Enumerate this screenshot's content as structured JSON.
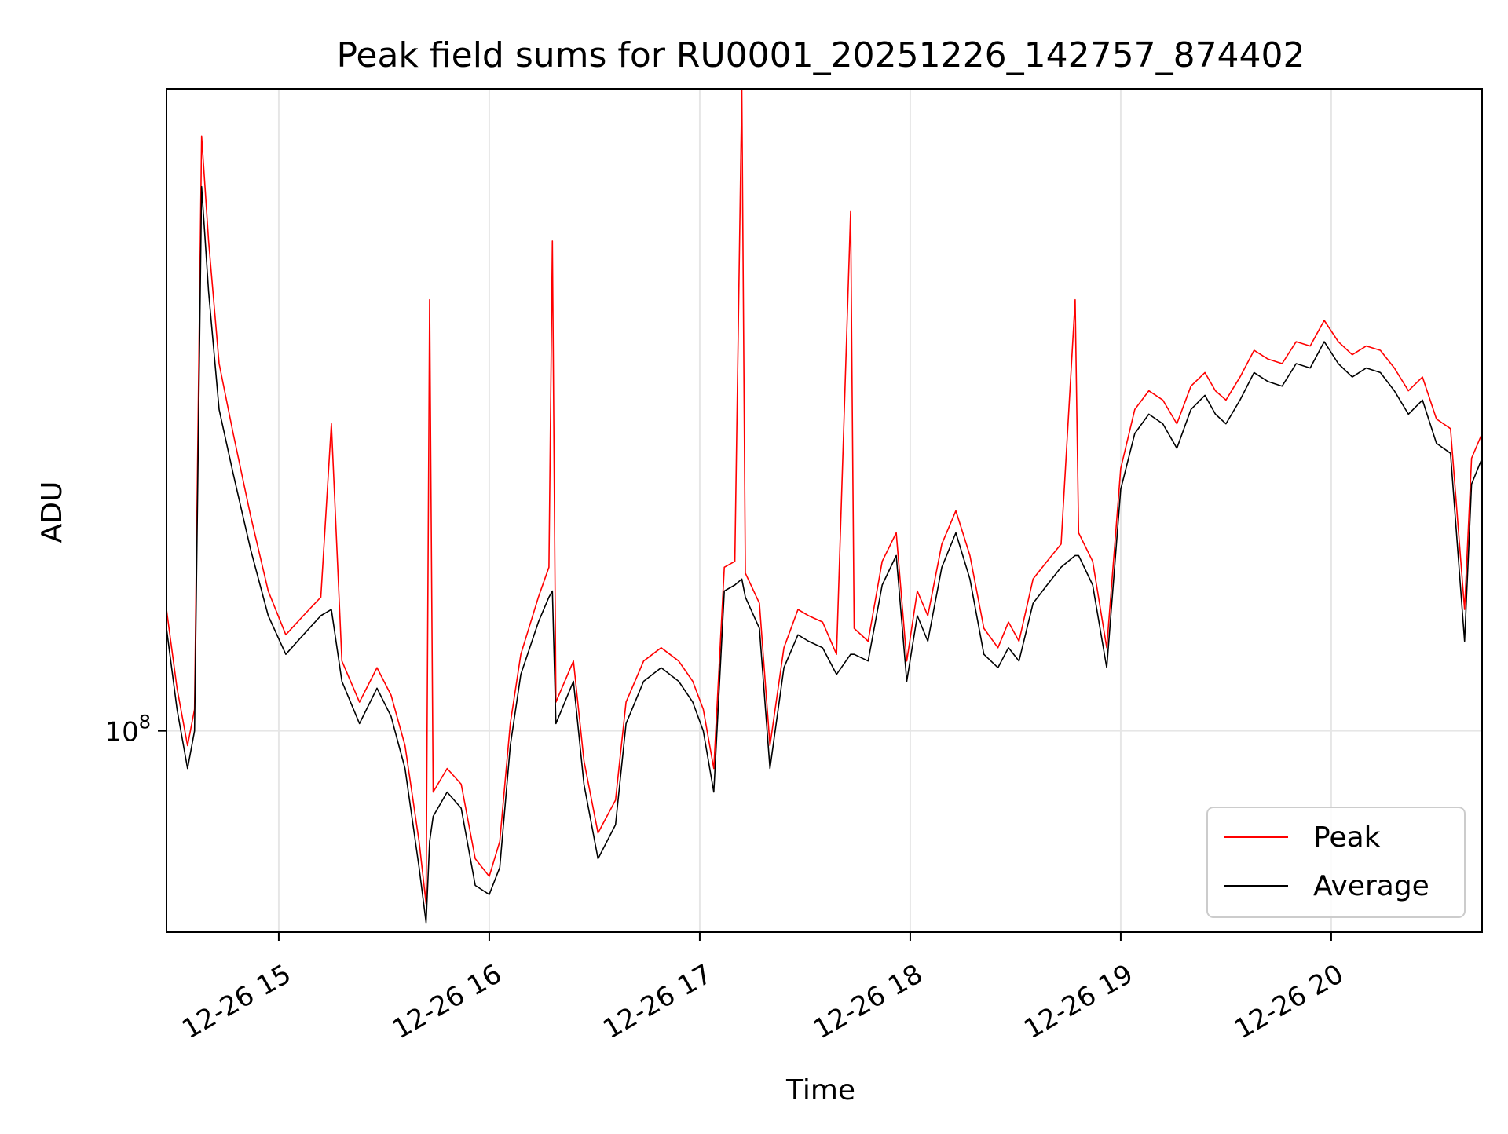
{
  "chart_data": {
    "type": "line",
    "title": "Peak field sums for RU0001_20251226_142757_874402",
    "xlabel": "Time",
    "ylabel": "ADU",
    "y_scale": "log",
    "grid": true,
    "legend_position": "lower-right",
    "xlim": [
      "2025-12-26 14:28",
      "2025-12-26 20:43"
    ],
    "ylim": [
      76000000,
      240000000
    ],
    "x_ticks": [
      "2025-12-26 15:00",
      "2025-12-26 16:00",
      "2025-12-26 17:00",
      "2025-12-26 18:00",
      "2025-12-26 19:00",
      "2025-12-26 20:00"
    ],
    "x_tick_labels": [
      "12-26 15",
      "12-26 16",
      "12-26 17",
      "12-26 18",
      "12-26 19",
      "12-26 20"
    ],
    "y_tick_label": {
      "base": "10",
      "exp": "8"
    },
    "y_tick_value": 100000000,
    "colors": {
      "peak": "#ff0000",
      "average": "#000000"
    },
    "series": [
      {
        "name": "Peak",
        "color": "#ff0000",
        "points": [
          [
            "2025-12-26 14:28",
            118000000
          ],
          [
            "2025-12-26 14:31",
            106000000
          ],
          [
            "2025-12-26 14:34",
            98000000
          ],
          [
            "2025-12-26 14:36",
            103000000
          ],
          [
            "2025-12-26 14:38",
            225000000
          ],
          [
            "2025-12-26 14:40",
            195000000
          ],
          [
            "2025-12-26 14:43",
            165000000
          ],
          [
            "2025-12-26 14:47",
            150000000
          ],
          [
            "2025-12-26 14:52",
            134000000
          ],
          [
            "2025-12-26 14:57",
            121000000
          ],
          [
            "2025-12-26 15:02",
            114000000
          ],
          [
            "2025-12-26 15:07",
            117000000
          ],
          [
            "2025-12-26 15:12",
            120000000
          ],
          [
            "2025-12-26 15:15",
            152000000
          ],
          [
            "2025-12-26 15:18",
            110000000
          ],
          [
            "2025-12-26 15:23",
            104000000
          ],
          [
            "2025-12-26 15:28",
            109000000
          ],
          [
            "2025-12-26 15:32",
            105000000
          ],
          [
            "2025-12-26 15:36",
            98000000
          ],
          [
            "2025-12-26 15:40",
            86000000
          ],
          [
            "2025-12-26 15:42",
            79000000
          ],
          [
            "2025-12-26 15:43",
            180000000
          ],
          [
            "2025-12-26 15:44",
            92000000
          ],
          [
            "2025-12-26 15:48",
            95000000
          ],
          [
            "2025-12-26 15:52",
            93000000
          ],
          [
            "2025-12-26 15:56",
            84000000
          ],
          [
            "2025-12-26 16:00",
            82000000
          ],
          [
            "2025-12-26 16:03",
            86000000
          ],
          [
            "2025-12-26 16:06",
            101000000
          ],
          [
            "2025-12-26 16:09",
            111000000
          ],
          [
            "2025-12-26 16:14",
            120000000
          ],
          [
            "2025-12-26 16:17",
            125000000
          ],
          [
            "2025-12-26 16:18",
            195000000
          ],
          [
            "2025-12-26 16:19",
            104000000
          ],
          [
            "2025-12-26 16:24",
            110000000
          ],
          [
            "2025-12-26 16:27",
            96000000
          ],
          [
            "2025-12-26 16:31",
            87000000
          ],
          [
            "2025-12-26 16:36",
            91000000
          ],
          [
            "2025-12-26 16:39",
            104000000
          ],
          [
            "2025-12-26 16:44",
            110000000
          ],
          [
            "2025-12-26 16:49",
            112000000
          ],
          [
            "2025-12-26 16:54",
            110000000
          ],
          [
            "2025-12-26 16:58",
            107000000
          ],
          [
            "2025-12-26 17:01",
            103000000
          ],
          [
            "2025-12-26 17:04",
            95000000
          ],
          [
            "2025-12-26 17:07",
            125000000
          ],
          [
            "2025-12-26 17:10",
            126000000
          ],
          [
            "2025-12-26 17:12",
            240000000
          ],
          [
            "2025-12-26 17:13",
            124000000
          ],
          [
            "2025-12-26 17:17",
            119000000
          ],
          [
            "2025-12-26 17:20",
            98000000
          ],
          [
            "2025-12-26 17:24",
            112000000
          ],
          [
            "2025-12-26 17:28",
            118000000
          ],
          [
            "2025-12-26 17:31",
            117000000
          ],
          [
            "2025-12-26 17:35",
            116000000
          ],
          [
            "2025-12-26 17:39",
            111000000
          ],
          [
            "2025-12-26 17:43",
            203000000
          ],
          [
            "2025-12-26 17:44",
            115000000
          ],
          [
            "2025-12-26 17:48",
            113000000
          ],
          [
            "2025-12-26 17:52",
            126000000
          ],
          [
            "2025-12-26 17:56",
            131000000
          ],
          [
            "2025-12-26 17:59",
            110000000
          ],
          [
            "2025-12-26 18:02",
            121000000
          ],
          [
            "2025-12-26 18:05",
            117000000
          ],
          [
            "2025-12-26 18:09",
            129000000
          ],
          [
            "2025-12-26 18:13",
            135000000
          ],
          [
            "2025-12-26 18:17",
            127000000
          ],
          [
            "2025-12-26 18:21",
            115000000
          ],
          [
            "2025-12-26 18:25",
            112000000
          ],
          [
            "2025-12-26 18:28",
            116000000
          ],
          [
            "2025-12-26 18:31",
            113000000
          ],
          [
            "2025-12-26 18:35",
            123000000
          ],
          [
            "2025-12-26 18:39",
            126000000
          ],
          [
            "2025-12-26 18:43",
            129000000
          ],
          [
            "2025-12-26 18:47",
            180000000
          ],
          [
            "2025-12-26 18:48",
            131000000
          ],
          [
            "2025-12-26 18:52",
            126000000
          ],
          [
            "2025-12-26 18:56",
            112000000
          ],
          [
            "2025-12-26 19:00",
            143000000
          ],
          [
            "2025-12-26 19:04",
            155000000
          ],
          [
            "2025-12-26 19:08",
            159000000
          ],
          [
            "2025-12-26 19:12",
            157000000
          ],
          [
            "2025-12-26 19:16",
            152000000
          ],
          [
            "2025-12-26 19:20",
            160000000
          ],
          [
            "2025-12-26 19:24",
            163000000
          ],
          [
            "2025-12-26 19:27",
            159000000
          ],
          [
            "2025-12-26 19:30",
            157000000
          ],
          [
            "2025-12-26 19:34",
            162000000
          ],
          [
            "2025-12-26 19:38",
            168000000
          ],
          [
            "2025-12-26 19:42",
            166000000
          ],
          [
            "2025-12-26 19:46",
            165000000
          ],
          [
            "2025-12-26 19:50",
            170000000
          ],
          [
            "2025-12-26 19:54",
            169000000
          ],
          [
            "2025-12-26 19:58",
            175000000
          ],
          [
            "2025-12-26 20:02",
            170000000
          ],
          [
            "2025-12-26 20:06",
            167000000
          ],
          [
            "2025-12-26 20:10",
            169000000
          ],
          [
            "2025-12-26 20:14",
            168000000
          ],
          [
            "2025-12-26 20:18",
            164000000
          ],
          [
            "2025-12-26 20:22",
            159000000
          ],
          [
            "2025-12-26 20:26",
            162000000
          ],
          [
            "2025-12-26 20:30",
            153000000
          ],
          [
            "2025-12-26 20:34",
            151000000
          ],
          [
            "2025-12-26 20:38",
            118000000
          ],
          [
            "2025-12-26 20:40",
            145000000
          ],
          [
            "2025-12-26 20:43",
            150000000
          ]
        ]
      },
      {
        "name": "Average",
        "color": "#000000",
        "points": [
          [
            "2025-12-26 14:28",
            115000000
          ],
          [
            "2025-12-26 14:31",
            103000000
          ],
          [
            "2025-12-26 14:34",
            95000000
          ],
          [
            "2025-12-26 14:36",
            100000000
          ],
          [
            "2025-12-26 14:38",
            210000000
          ],
          [
            "2025-12-26 14:40",
            182000000
          ],
          [
            "2025-12-26 14:43",
            155000000
          ],
          [
            "2025-12-26 14:47",
            142000000
          ],
          [
            "2025-12-26 14:52",
            128000000
          ],
          [
            "2025-12-26 14:57",
            117000000
          ],
          [
            "2025-12-26 15:02",
            111000000
          ],
          [
            "2025-12-26 15:07",
            114000000
          ],
          [
            "2025-12-26 15:12",
            117000000
          ],
          [
            "2025-12-26 15:15",
            118000000
          ],
          [
            "2025-12-26 15:18",
            107000000
          ],
          [
            "2025-12-26 15:23",
            101000000
          ],
          [
            "2025-12-26 15:28",
            106000000
          ],
          [
            "2025-12-26 15:32",
            102000000
          ],
          [
            "2025-12-26 15:36",
            95000000
          ],
          [
            "2025-12-26 15:40",
            83000000
          ],
          [
            "2025-12-26 15:42",
            77000000
          ],
          [
            "2025-12-26 15:43",
            86000000
          ],
          [
            "2025-12-26 15:44",
            89000000
          ],
          [
            "2025-12-26 15:48",
            92000000
          ],
          [
            "2025-12-26 15:52",
            90000000
          ],
          [
            "2025-12-26 15:56",
            81000000
          ],
          [
            "2025-12-26 16:00",
            80000000
          ],
          [
            "2025-12-26 16:03",
            83000000
          ],
          [
            "2025-12-26 16:06",
            98000000
          ],
          [
            "2025-12-26 16:09",
            108000000
          ],
          [
            "2025-12-26 16:14",
            116000000
          ],
          [
            "2025-12-26 16:17",
            120000000
          ],
          [
            "2025-12-26 16:18",
            121000000
          ],
          [
            "2025-12-26 16:19",
            101000000
          ],
          [
            "2025-12-26 16:24",
            107000000
          ],
          [
            "2025-12-26 16:27",
            93000000
          ],
          [
            "2025-12-26 16:31",
            84000000
          ],
          [
            "2025-12-26 16:36",
            88000000
          ],
          [
            "2025-12-26 16:39",
            101000000
          ],
          [
            "2025-12-26 16:44",
            107000000
          ],
          [
            "2025-12-26 16:49",
            109000000
          ],
          [
            "2025-12-26 16:54",
            107000000
          ],
          [
            "2025-12-26 16:58",
            104000000
          ],
          [
            "2025-12-26 17:01",
            100000000
          ],
          [
            "2025-12-26 17:04",
            92000000
          ],
          [
            "2025-12-26 17:07",
            121000000
          ],
          [
            "2025-12-26 17:10",
            122000000
          ],
          [
            "2025-12-26 17:12",
            123000000
          ],
          [
            "2025-12-26 17:13",
            120000000
          ],
          [
            "2025-12-26 17:17",
            115000000
          ],
          [
            "2025-12-26 17:20",
            95000000
          ],
          [
            "2025-12-26 17:24",
            109000000
          ],
          [
            "2025-12-26 17:28",
            114000000
          ],
          [
            "2025-12-26 17:31",
            113000000
          ],
          [
            "2025-12-26 17:35",
            112000000
          ],
          [
            "2025-12-26 17:39",
            108000000
          ],
          [
            "2025-12-26 17:43",
            111000000
          ],
          [
            "2025-12-26 17:44",
            111000000
          ],
          [
            "2025-12-26 17:48",
            110000000
          ],
          [
            "2025-12-26 17:52",
            122000000
          ],
          [
            "2025-12-26 17:56",
            127000000
          ],
          [
            "2025-12-26 17:59",
            107000000
          ],
          [
            "2025-12-26 18:02",
            117000000
          ],
          [
            "2025-12-26 18:05",
            113000000
          ],
          [
            "2025-12-26 18:09",
            125000000
          ],
          [
            "2025-12-26 18:13",
            131000000
          ],
          [
            "2025-12-26 18:17",
            123000000
          ],
          [
            "2025-12-26 18:21",
            111000000
          ],
          [
            "2025-12-26 18:25",
            109000000
          ],
          [
            "2025-12-26 18:28",
            112000000
          ],
          [
            "2025-12-26 18:31",
            110000000
          ],
          [
            "2025-12-26 18:35",
            119000000
          ],
          [
            "2025-12-26 18:39",
            122000000
          ],
          [
            "2025-12-26 18:43",
            125000000
          ],
          [
            "2025-12-26 18:47",
            127000000
          ],
          [
            "2025-12-26 18:48",
            127000000
          ],
          [
            "2025-12-26 18:52",
            122000000
          ],
          [
            "2025-12-26 18:56",
            109000000
          ],
          [
            "2025-12-26 19:00",
            139000000
          ],
          [
            "2025-12-26 19:04",
            150000000
          ],
          [
            "2025-12-26 19:08",
            154000000
          ],
          [
            "2025-12-26 19:12",
            152000000
          ],
          [
            "2025-12-26 19:16",
            147000000
          ],
          [
            "2025-12-26 19:20",
            155000000
          ],
          [
            "2025-12-26 19:24",
            158000000
          ],
          [
            "2025-12-26 19:27",
            154000000
          ],
          [
            "2025-12-26 19:30",
            152000000
          ],
          [
            "2025-12-26 19:34",
            157000000
          ],
          [
            "2025-12-26 19:38",
            163000000
          ],
          [
            "2025-12-26 19:42",
            161000000
          ],
          [
            "2025-12-26 19:46",
            160000000
          ],
          [
            "2025-12-26 19:50",
            165000000
          ],
          [
            "2025-12-26 19:54",
            164000000
          ],
          [
            "2025-12-26 19:58",
            170000000
          ],
          [
            "2025-12-26 20:02",
            165000000
          ],
          [
            "2025-12-26 20:06",
            162000000
          ],
          [
            "2025-12-26 20:10",
            164000000
          ],
          [
            "2025-12-26 20:14",
            163000000
          ],
          [
            "2025-12-26 20:18",
            159000000
          ],
          [
            "2025-12-26 20:22",
            154000000
          ],
          [
            "2025-12-26 20:26",
            157000000
          ],
          [
            "2025-12-26 20:30",
            148000000
          ],
          [
            "2025-12-26 20:34",
            146000000
          ],
          [
            "2025-12-26 20:38",
            113000000
          ],
          [
            "2025-12-26 20:40",
            140000000
          ],
          [
            "2025-12-26 20:43",
            145000000
          ]
        ]
      }
    ]
  }
}
